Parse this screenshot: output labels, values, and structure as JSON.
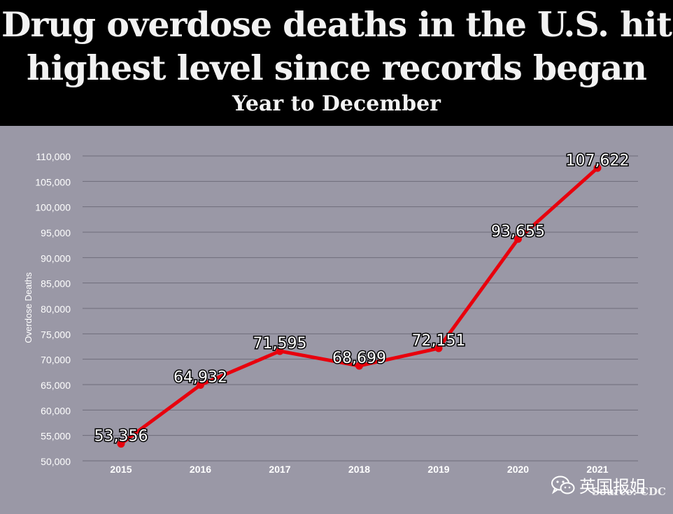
{
  "header": {
    "title_line1": "Drug overdose deaths in the U.S. hit",
    "title_line2": "highest level since records began",
    "subtitle": "Year to December"
  },
  "chart_data": {
    "type": "line",
    "title": "Drug overdose deaths in the U.S. hit highest level since records began",
    "subtitle": "Year to December",
    "xlabel": "",
    "ylabel": "Overdose Deaths",
    "categories": [
      "2015",
      "2016",
      "2017",
      "2018",
      "2019",
      "2020",
      "2021"
    ],
    "series": [
      {
        "name": "Overdose Deaths",
        "values": [
          53356,
          64932,
          71595,
          68699,
          72151,
          93655,
          107622
        ]
      }
    ],
    "data_labels": [
      "53,356",
      "64,932",
      "71,595",
      "68,699",
      "72,151",
      "93,655",
      "107,622"
    ],
    "ylim": [
      50000,
      110000
    ],
    "yticks": [
      50000,
      55000,
      60000,
      65000,
      70000,
      75000,
      80000,
      85000,
      90000,
      95000,
      100000,
      105000,
      110000
    ],
    "ytick_labels": [
      "50,000",
      "55,000",
      "60,000",
      "65,000",
      "70,000",
      "75,000",
      "80,000",
      "85,000",
      "90,000",
      "95,000",
      "100,000",
      "105,000",
      "110,000"
    ],
    "grid": true,
    "line_color": "#e8000d",
    "background_color": "#9a98a6"
  },
  "watermark": {
    "text": "英国报姐",
    "icon": "wechat-icon"
  },
  "source": "Source: CDC"
}
